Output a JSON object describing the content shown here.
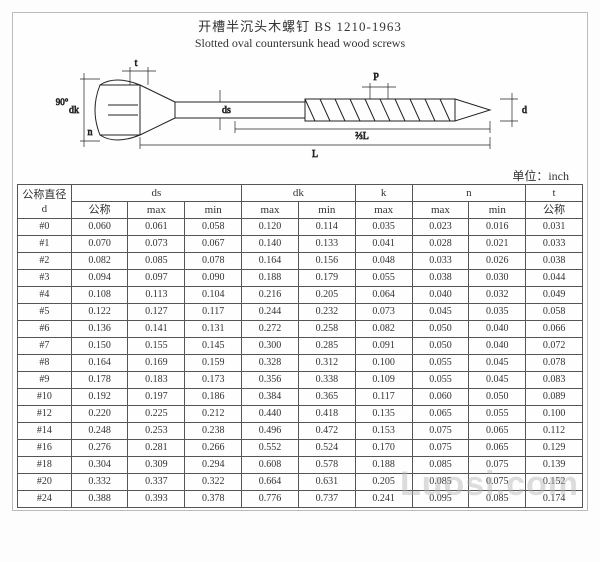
{
  "title_cn": "开槽半沉头木螺钉 BS 1210-1963",
  "title_en": "Slotted oval countersunk head wood screws",
  "unit_label": "单位：inch",
  "diagram_labels": {
    "t": "t",
    "dk": "dk",
    "n": "n",
    "ds": "ds",
    "P": "P",
    "d": "d",
    "L": "L",
    "aL": "⅔L",
    "angle": "90°"
  },
  "columns": {
    "d_group": "公称直径",
    "d_sub": "d",
    "ds": "ds",
    "dk": "dk",
    "k": "k",
    "n": "n",
    "t": "t",
    "nominal": "公称",
    "max": "max",
    "min": "min"
  },
  "rows": [
    {
      "d": "#0",
      "ds_nom": "0.060",
      "ds_max": "0.061",
      "ds_min": "0.058",
      "dk_max": "0.120",
      "dk_min": "0.114",
      "k_max": "0.035",
      "n_max": "0.023",
      "n_min": "0.016",
      "t_nom": "0.031"
    },
    {
      "d": "#1",
      "ds_nom": "0.070",
      "ds_max": "0.073",
      "ds_min": "0.067",
      "dk_max": "0.140",
      "dk_min": "0.133",
      "k_max": "0.041",
      "n_max": "0.028",
      "n_min": "0.021",
      "t_nom": "0.033"
    },
    {
      "d": "#2",
      "ds_nom": "0.082",
      "ds_max": "0.085",
      "ds_min": "0.078",
      "dk_max": "0.164",
      "dk_min": "0.156",
      "k_max": "0.048",
      "n_max": "0.033",
      "n_min": "0.026",
      "t_nom": "0.038"
    },
    {
      "d": "#3",
      "ds_nom": "0.094",
      "ds_max": "0.097",
      "ds_min": "0.090",
      "dk_max": "0.188",
      "dk_min": "0.179",
      "k_max": "0.055",
      "n_max": "0.038",
      "n_min": "0.030",
      "t_nom": "0.044"
    },
    {
      "d": "#4",
      "ds_nom": "0.108",
      "ds_max": "0.113",
      "ds_min": "0.104",
      "dk_max": "0.216",
      "dk_min": "0.205",
      "k_max": "0.064",
      "n_max": "0.040",
      "n_min": "0.032",
      "t_nom": "0.049"
    },
    {
      "d": "#5",
      "ds_nom": "0.122",
      "ds_max": "0.127",
      "ds_min": "0.117",
      "dk_max": "0.244",
      "dk_min": "0.232",
      "k_max": "0.073",
      "n_max": "0.045",
      "n_min": "0.035",
      "t_nom": "0.058"
    },
    {
      "d": "#6",
      "ds_nom": "0.136",
      "ds_max": "0.141",
      "ds_min": "0.131",
      "dk_max": "0.272",
      "dk_min": "0.258",
      "k_max": "0.082",
      "n_max": "0.050",
      "n_min": "0.040",
      "t_nom": "0.066"
    },
    {
      "d": "#7",
      "ds_nom": "0.150",
      "ds_max": "0.155",
      "ds_min": "0.145",
      "dk_max": "0.300",
      "dk_min": "0.285",
      "k_max": "0.091",
      "n_max": "0.050",
      "n_min": "0.040",
      "t_nom": "0.072"
    },
    {
      "d": "#8",
      "ds_nom": "0.164",
      "ds_max": "0.169",
      "ds_min": "0.159",
      "dk_max": "0.328",
      "dk_min": "0.312",
      "k_max": "0.100",
      "n_max": "0.055",
      "n_min": "0.045",
      "t_nom": "0.078"
    },
    {
      "d": "#9",
      "ds_nom": "0.178",
      "ds_max": "0.183",
      "ds_min": "0.173",
      "dk_max": "0.356",
      "dk_min": "0.338",
      "k_max": "0.109",
      "n_max": "0.055",
      "n_min": "0.045",
      "t_nom": "0.083"
    },
    {
      "d": "#10",
      "ds_nom": "0.192",
      "ds_max": "0.197",
      "ds_min": "0.186",
      "dk_max": "0.384",
      "dk_min": "0.365",
      "k_max": "0.117",
      "n_max": "0.060",
      "n_min": "0.050",
      "t_nom": "0.089"
    },
    {
      "d": "#12",
      "ds_nom": "0.220",
      "ds_max": "0.225",
      "ds_min": "0.212",
      "dk_max": "0.440",
      "dk_min": "0.418",
      "k_max": "0.135",
      "n_max": "0.065",
      "n_min": "0.055",
      "t_nom": "0.100"
    },
    {
      "d": "#14",
      "ds_nom": "0.248",
      "ds_max": "0.253",
      "ds_min": "0.238",
      "dk_max": "0.496",
      "dk_min": "0.472",
      "k_max": "0.153",
      "n_max": "0.075",
      "n_min": "0.065",
      "t_nom": "0.112"
    },
    {
      "d": "#16",
      "ds_nom": "0.276",
      "ds_max": "0.281",
      "ds_min": "0.266",
      "dk_max": "0.552",
      "dk_min": "0.524",
      "k_max": "0.170",
      "n_max": "0.075",
      "n_min": "0.065",
      "t_nom": "0.129"
    },
    {
      "d": "#18",
      "ds_nom": "0.304",
      "ds_max": "0.309",
      "ds_min": "0.294",
      "dk_max": "0.608",
      "dk_min": "0.578",
      "k_max": "0.188",
      "n_max": "0.085",
      "n_min": "0.075",
      "t_nom": "0.139"
    },
    {
      "d": "#20",
      "ds_nom": "0.332",
      "ds_max": "0.337",
      "ds_min": "0.322",
      "dk_max": "0.664",
      "dk_min": "0.631",
      "k_max": "0.205",
      "n_max": "0.085",
      "n_min": "0.075",
      "t_nom": "0.152"
    },
    {
      "d": "#24",
      "ds_nom": "0.388",
      "ds_max": "0.393",
      "ds_min": "0.378",
      "dk_max": "0.776",
      "dk_min": "0.737",
      "k_max": "0.241",
      "n_max": "0.095",
      "n_min": "0.085",
      "t_nom": "0.174"
    }
  ],
  "watermark": "Luosi.com",
  "style": {
    "bg": "#fefefe",
    "border": "#555",
    "text": "#333",
    "font_size_table": 10,
    "font_size_title": 13
  }
}
